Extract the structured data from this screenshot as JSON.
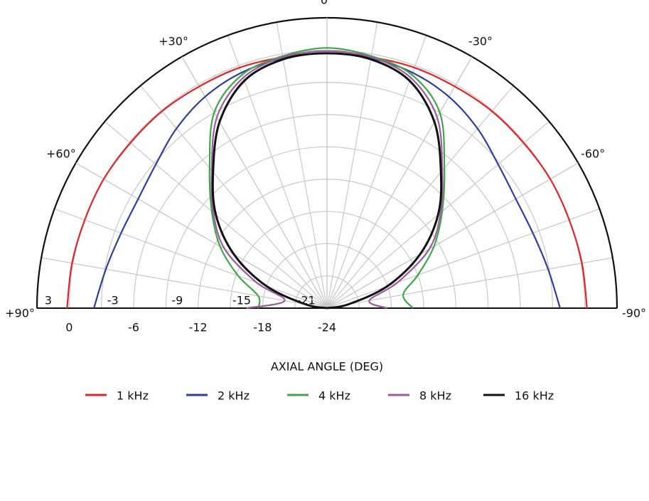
{
  "chart_data": {
    "type": "polar",
    "x_label": "AXIAL ANGLE (DEG)",
    "x": [
      90,
      80,
      70,
      60,
      50,
      40,
      30,
      20,
      10,
      0,
      -10,
      -20,
      -30,
      -40,
      -50,
      -60,
      -70,
      -80,
      -90
    ],
    "series": [
      {
        "name": "1 kHz",
        "color": "#e2232b",
        "values": [
          0.2,
          0.1,
          0,
          0,
          -0.1,
          -0.1,
          -0.2,
          -0.2,
          -0.3,
          -0.3,
          -0.3,
          -0.2,
          -0.2,
          -0.1,
          -0.1,
          0,
          0,
          0.1,
          0.2
        ]
      },
      {
        "name": "2 kHz",
        "color": "#2d3f97",
        "values": [
          -2.3,
          -3.1,
          -3.6,
          -3.7,
          -3.2,
          -2.2,
          -1.3,
          -0.7,
          -0.4,
          -0.3,
          -0.4,
          -0.7,
          -1.3,
          -2.2,
          -3.2,
          -3.7,
          -3.6,
          -3.1,
          -2.3
        ]
      },
      {
        "name": "4 kHz",
        "color": "#3fa64b",
        "values": [
          -17.6,
          -17.5,
          -15.2,
          -12.5,
          -10,
          -7,
          -3,
          -0.9,
          -0.2,
          0.2,
          -0.2,
          -0.9,
          -3,
          -7,
          -10,
          -12.5,
          -15,
          -16.8,
          -16
        ]
      },
      {
        "name": "8 kHz",
        "color": "#9a5c9e",
        "values": [
          -16.5,
          -20,
          -17,
          -13,
          -10.2,
          -7.3,
          -3.5,
          -1.2,
          -0.3,
          -0.1,
          -0.3,
          -1.2,
          -3.5,
          -7.3,
          -10.2,
          -13,
          -17,
          -20,
          -18.4
        ]
      },
      {
        "name": "16 kHz",
        "color": "#111111",
        "values": [
          -24,
          -22,
          -18,
          -14,
          -10.5,
          -7.5,
          -4,
          -1.5,
          -0.5,
          -0.3,
          -0.5,
          -1.5,
          -4,
          -7.5,
          -10.5,
          -14,
          -18,
          -22,
          -24
        ]
      }
    ],
    "rlim": [
      -24,
      3
    ],
    "rticks": [
      3,
      0,
      -3,
      -6,
      -9,
      -12,
      -15,
      -18,
      -21,
      -24
    ],
    "thetaticks": [
      {
        "value": 90,
        "label": "+90°"
      },
      {
        "value": 60,
        "label": "+60°"
      },
      {
        "value": 30,
        "label": "+30°"
      },
      {
        "value": 0,
        "label": "0°"
      },
      {
        "value": -30,
        "label": "-30°"
      },
      {
        "value": -60,
        "label": "-60°"
      },
      {
        "value": -90,
        "label": "-90°"
      }
    ],
    "grid": true
  }
}
